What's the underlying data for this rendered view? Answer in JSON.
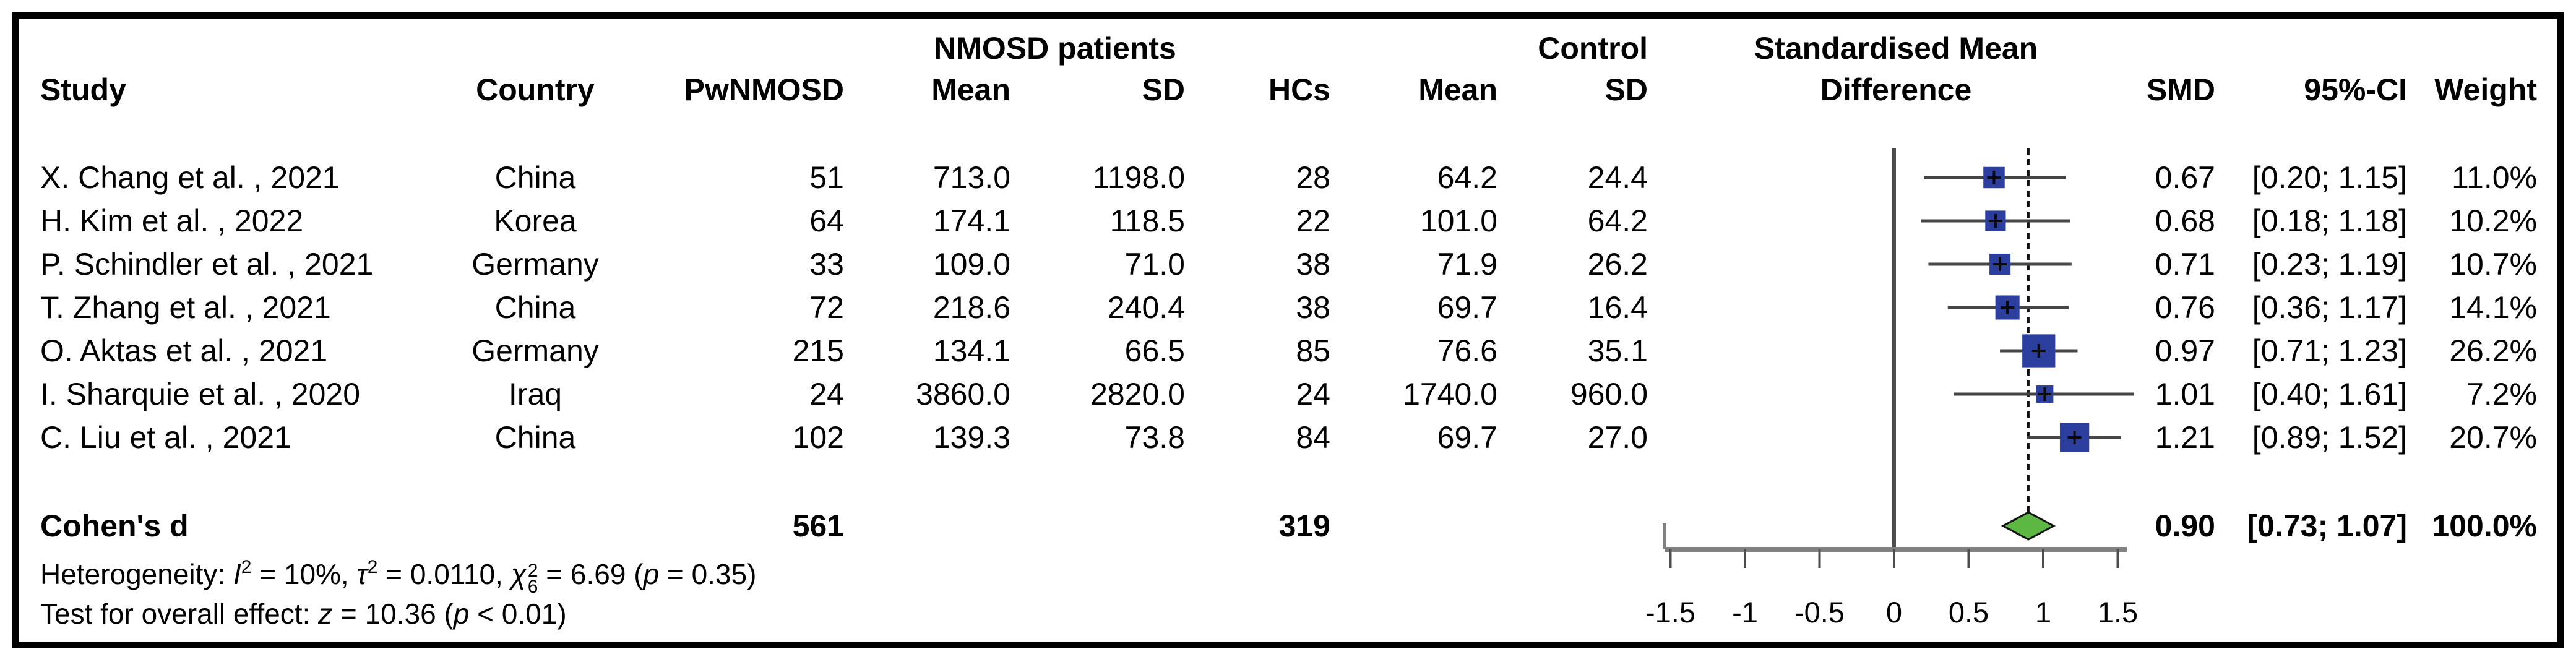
{
  "headers": {
    "nmosd_group": "NMOSD patients",
    "control_group": "Control",
    "smd_line1": "Standardised Mean",
    "smd_line2": "Difference",
    "study": "Study",
    "country": "Country",
    "pwnmosd": "PwNMOSD",
    "mean_nmosd": "Mean",
    "sd_nmosd": "SD",
    "hcs": "HCs",
    "mean_control": "Mean",
    "sd_control": "SD",
    "smd": "SMD",
    "ci": "95%-CI",
    "weight": "Weight"
  },
  "rows": [
    {
      "study": "X. Chang et al. , 2021",
      "country": "China",
      "n": "51",
      "mean": "713.0",
      "sd": "1198.0",
      "hcs_n": "28",
      "c_mean": "64.2",
      "c_sd": "24.4",
      "smd": "0.67",
      "ci": "[0.20; 1.15]",
      "weight": "11.0%"
    },
    {
      "study": "H. Kim et al. , 2022",
      "country": "Korea",
      "n": "64",
      "mean": "174.1",
      "sd": "118.5",
      "hcs_n": "22",
      "c_mean": "101.0",
      "c_sd": "64.2",
      "smd": "0.68",
      "ci": "[0.18; 1.18]",
      "weight": "10.2%"
    },
    {
      "study": "P. Schindler et al. , 2021",
      "country": "Germany",
      "n": "33",
      "mean": "109.0",
      "sd": "71.0",
      "hcs_n": "38",
      "c_mean": "71.9",
      "c_sd": "26.2",
      "smd": "0.71",
      "ci": "[0.23; 1.19]",
      "weight": "10.7%"
    },
    {
      "study": "T. Zhang et al. , 2021",
      "country": "China",
      "n": "72",
      "mean": "218.6",
      "sd": "240.4",
      "hcs_n": "38",
      "c_mean": "69.7",
      "c_sd": "16.4",
      "smd": "0.76",
      "ci": "[0.36; 1.17]",
      "weight": "14.1%"
    },
    {
      "study": "O. Aktas et al. , 2021",
      "country": "Germany",
      "n": "215",
      "mean": "134.1",
      "sd": "66.5",
      "hcs_n": "85",
      "c_mean": "76.6",
      "c_sd": "35.1",
      "smd": "0.97",
      "ci": "[0.71; 1.23]",
      "weight": "26.2%"
    },
    {
      "study": "I. Sharquie et al. , 2020",
      "country": "Iraq",
      "n": "24",
      "mean": "3860.0",
      "sd": "2820.0",
      "hcs_n": "24",
      "c_mean": "1740.0",
      "c_sd": "960.0",
      "smd": "1.01",
      "ci": "[0.40; 1.61]",
      "weight": "7.2%"
    },
    {
      "study": "C. Liu et al. , 2021",
      "country": "China",
      "n": "102",
      "mean": "139.3",
      "sd": "73.8",
      "hcs_n": "84",
      "c_mean": "69.7",
      "c_sd": "27.0",
      "smd": "1.21",
      "ci": "[0.89; 1.52]",
      "weight": "20.7%"
    }
  ],
  "summary": {
    "label": "Cohen's d",
    "n": "561",
    "hcs_n": "319",
    "smd": "0.90",
    "ci": "[0.73; 1.07]",
    "weight": "100.0%"
  },
  "footnotes": {
    "heterogeneity_segments": [
      {
        "t": "text",
        "v": "Heterogeneity: "
      },
      {
        "t": "i",
        "v": "I"
      },
      {
        "t": "sup",
        "v": "2"
      },
      {
        "t": "text",
        "v": " = 10%, "
      },
      {
        "t": "i",
        "v": "τ"
      },
      {
        "t": "sup",
        "v": "2"
      },
      {
        "t": "text",
        "v": " = 0.0110, "
      },
      {
        "t": "i",
        "v": "χ"
      },
      {
        "t": "stack",
        "sup": "2",
        "sub": "6"
      },
      {
        "t": "text",
        "v": " = 6.69 ("
      },
      {
        "t": "i",
        "v": "p"
      },
      {
        "t": "text",
        "v": " = 0.35)"
      }
    ],
    "overall_segments": [
      {
        "t": "text",
        "v": "Test for overall effect: "
      },
      {
        "t": "i",
        "v": "z"
      },
      {
        "t": "text",
        "v": " = 10.36 ("
      },
      {
        "t": "i",
        "v": "p"
      },
      {
        "t": "text",
        "v": " < 0.01)"
      }
    ]
  },
  "chart_data": {
    "type": "forest",
    "x_ticks": [
      -1.5,
      -1,
      -0.5,
      0,
      0.5,
      1,
      1.5
    ],
    "x_tick_labels": [
      "-1.5",
      "-1",
      "-0.5",
      "0",
      "0.5",
      "1",
      "1.5"
    ],
    "xlim": [
      -1.7,
      1.6
    ],
    "reference_line": 0,
    "pooled_dashed_line": 0.9,
    "studies": [
      {
        "name": "X. Chang et al. , 2021",
        "smd": 0.67,
        "ci_low": 0.2,
        "ci_high": 1.15,
        "weight_pct": 11.0
      },
      {
        "name": "H. Kim et al. , 2022",
        "smd": 0.68,
        "ci_low": 0.18,
        "ci_high": 1.18,
        "weight_pct": 10.2
      },
      {
        "name": "P. Schindler et al. , 2021",
        "smd": 0.71,
        "ci_low": 0.23,
        "ci_high": 1.19,
        "weight_pct": 10.7
      },
      {
        "name": "T. Zhang et al. , 2021",
        "smd": 0.76,
        "ci_low": 0.36,
        "ci_high": 1.17,
        "weight_pct": 14.1
      },
      {
        "name": "O. Aktas et al. , 2021",
        "smd": 0.97,
        "ci_low": 0.71,
        "ci_high": 1.23,
        "weight_pct": 26.2
      },
      {
        "name": "I. Sharquie et al. , 2020",
        "smd": 1.01,
        "ci_low": 0.4,
        "ci_high": 1.61,
        "weight_pct": 7.2
      },
      {
        "name": "C. Liu et al. , 2021",
        "smd": 1.21,
        "ci_low": 0.89,
        "ci_high": 1.52,
        "weight_pct": 20.7
      }
    ],
    "pooled": {
      "label": "Cohen's d",
      "smd": 0.9,
      "ci_low": 0.73,
      "ci_high": 1.07,
      "weight_pct": 100.0
    },
    "colors": {
      "square": "#2c3f9f",
      "square_marker": "#0a0a0a",
      "diamond_fill": "#5cb843",
      "diamond_stroke": "#111111",
      "whisker": "#444444",
      "axis": "#808080",
      "guide_line": "#4d4d4d",
      "dashed_line": "#111111",
      "text": "#000000",
      "frame": "#000000"
    }
  }
}
